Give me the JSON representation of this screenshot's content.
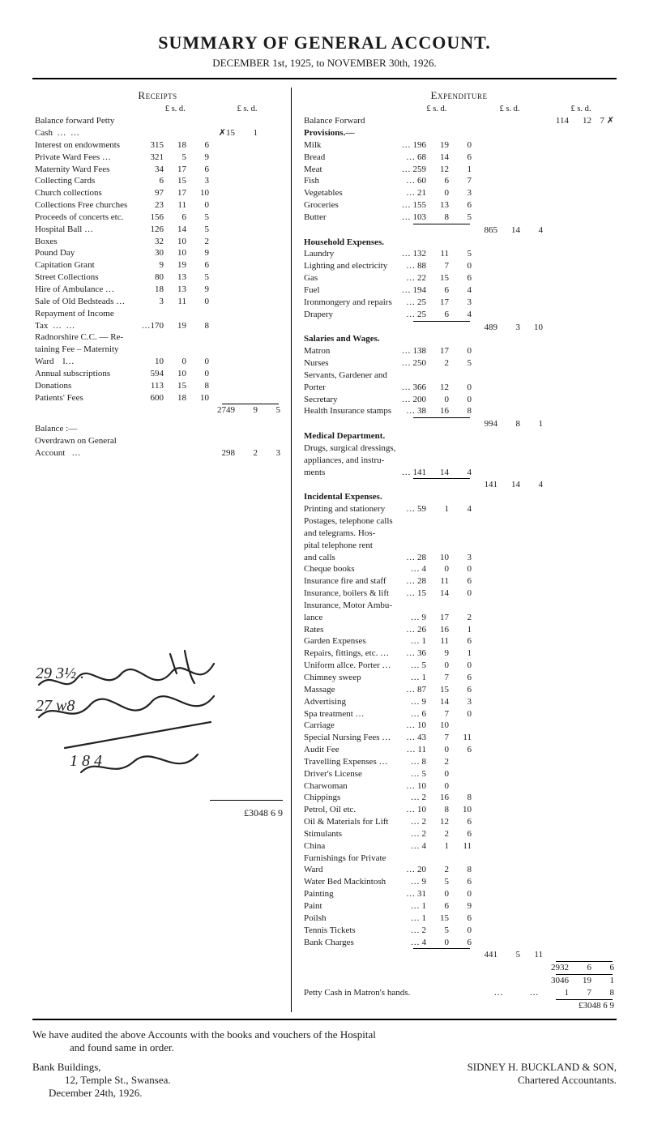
{
  "header": {
    "title": "SUMMARY OF GENERAL ACCOUNT.",
    "subtitle": "DECEMBER 1st, 1925, to NOVEMBER 30th, 1926."
  },
  "colors": {
    "text": "#1a1a1a",
    "rule": "#000000",
    "background": "#ffffff"
  },
  "receipts": {
    "heading": "Receipts",
    "currency_header_inner": "£  s. d.",
    "currency_header_outer": "£  s. d.",
    "balance_forward_label": "Balance forward Petty",
    "balance_forward_sub": "Cash",
    "balance_forward_amt": {
      "L": 15,
      "s": 1,
      "note_symbol": "✗"
    },
    "items": [
      {
        "desc": "Interest on endowments",
        "L": 315,
        "s": 18,
        "d": 6
      },
      {
        "desc": "Private Ward Fees …",
        "L": 321,
        "s": 5,
        "d": 9
      },
      {
        "desc": "Maternity Ward Fees",
        "L": 34,
        "s": 17,
        "d": 6
      },
      {
        "desc": "Collecting Cards",
        "L": 6,
        "s": 15,
        "d": 3
      },
      {
        "desc": "Church collections",
        "L": 97,
        "s": 17,
        "d": 10
      },
      {
        "desc": "Collections Free churches",
        "L": 23,
        "s": 11,
        "d": 0
      },
      {
        "desc": "Proceeds of concerts etc.",
        "L": 156,
        "s": 6,
        "d": 5
      },
      {
        "desc": "Hospital Ball …",
        "L": 126,
        "s": 14,
        "d": 5
      },
      {
        "desc": "Boxes",
        "L": 32,
        "s": 10,
        "d": 2
      },
      {
        "desc": "Pound Day",
        "L": 30,
        "s": 10,
        "d": 9
      },
      {
        "desc": "Capitation Grant",
        "L": 9,
        "s": 19,
        "d": 6
      },
      {
        "desc": "Street Collections",
        "L": 80,
        "s": 13,
        "d": 5
      },
      {
        "desc": "Hire of Ambulance …",
        "L": 18,
        "s": 13,
        "d": 9
      },
      {
        "desc": "Sale of Old Bedsteads …",
        "L": 3,
        "s": 11,
        "d": 0
      },
      {
        "desc": "Repayment of Income",
        "sub": "Tax",
        "L": 170,
        "s": 19,
        "d": 8
      },
      {
        "desc": "Radnorshire C.C. — Re-",
        "sub": "taining Fee – Maternity",
        "sub2": "Ward",
        "L": 10,
        "s": 0,
        "d": 0
      },
      {
        "desc": "Annual subscriptions",
        "L": 594,
        "s": 10,
        "d": 0
      },
      {
        "desc": "Donations",
        "L": 113,
        "s": 15,
        "d": 8
      },
      {
        "desc": "Patients' Fees",
        "L": 600,
        "s": 18,
        "d": 10
      }
    ],
    "subtotal": {
      "L": 2749,
      "s": 9,
      "d": 5
    },
    "balance_section": {
      "label": "Balance :—",
      "sub": "Overdrawn on General",
      "sub2": "Account",
      "amt": {
        "L": 298,
        "s": 2,
        "d": 3
      }
    },
    "grand_total": "£3048  6  9"
  },
  "expenditure": {
    "heading": "Expenditure",
    "currency_col1": "£  s. d.",
    "currency_col2": "£  s. d.",
    "currency_col3": "£  s. d.",
    "balance_forward_row": {
      "desc": "Balance Forward",
      "L": 114,
      "s": 12,
      "d": 7,
      "note_symbol": "✗"
    },
    "sections": {
      "provisions": {
        "title": "Provisions.—",
        "items": [
          {
            "desc": "Milk",
            "L": 196,
            "s": 19,
            "d": 0
          },
          {
            "desc": "Bread",
            "L": 68,
            "s": 14,
            "d": 6
          },
          {
            "desc": "Meat",
            "L": 259,
            "s": 12,
            "d": 1
          },
          {
            "desc": "Fish",
            "L": 60,
            "s": 6,
            "d": 7
          },
          {
            "desc": "Vegetables",
            "L": 21,
            "s": 0,
            "d": 3
          },
          {
            "desc": "Groceries",
            "L": 155,
            "s": 13,
            "d": 6
          },
          {
            "desc": "Butter",
            "L": 103,
            "s": 8,
            "d": 5
          }
        ],
        "subtotal": {
          "L": 865,
          "s": 14,
          "d": 4
        }
      },
      "household": {
        "title": "Household Expenses.",
        "items": [
          {
            "desc": "Laundry",
            "L": 132,
            "s": 11,
            "d": 5
          },
          {
            "desc": "Lighting and electricity",
            "L": 88,
            "s": 7,
            "d": 0
          },
          {
            "desc": "Gas",
            "L": 22,
            "s": 15,
            "d": 6
          },
          {
            "desc": "Fuel",
            "L": 194,
            "s": 6,
            "d": 4
          },
          {
            "desc": "Ironmongery and repairs",
            "L": 25,
            "s": 17,
            "d": 3
          },
          {
            "desc": "Drapery",
            "L": 25,
            "s": 6,
            "d": 4
          }
        ],
        "subtotal": {
          "L": 489,
          "s": 3,
          "d": 10
        }
      },
      "salaries": {
        "title": "Salaries and Wages.",
        "items": [
          {
            "desc": "Matron",
            "L": 138,
            "s": 17,
            "d": 0
          },
          {
            "desc": "Nurses",
            "L": 250,
            "s": 2,
            "d": 5
          },
          {
            "desc": "Servants, Gardener and"
          },
          {
            "desc": "Porter",
            "indent": true,
            "L": 366,
            "s": 12,
            "d": 0
          },
          {
            "desc": "Secretary",
            "L": 200,
            "s": 0,
            "d": 0
          },
          {
            "desc": "Health Insurance stamps",
            "L": 38,
            "s": 16,
            "d": 8
          }
        ],
        "subtotal": {
          "L": 994,
          "s": 8,
          "d": 1
        }
      },
      "medical": {
        "title": "Medical Department.",
        "items": [
          {
            "desc": "Drugs, surgical dressings,"
          },
          {
            "desc": "appliances, and instru-",
            "indent": true
          },
          {
            "desc": "ments",
            "indent": true,
            "L": 141,
            "s": 14,
            "d": 4
          }
        ],
        "subtotal": {
          "L": 141,
          "s": 14,
          "d": 4
        }
      },
      "incidental": {
        "title": "Incidental Expenses.",
        "items": [
          {
            "desc": "Printing and stationery",
            "L": 59,
            "s": 1,
            "d": 4
          },
          {
            "desc": "Postages, telephone calls"
          },
          {
            "desc": "and telegrams.  Hos-",
            "indent": true
          },
          {
            "desc": "pital  telephone  rent",
            "indent": true
          },
          {
            "desc": "and calls",
            "indent": true,
            "L": 28,
            "s": 10,
            "d": 3
          },
          {
            "desc": "Cheque books",
            "L": 4,
            "s": 0,
            "d": 0
          },
          {
            "desc": "Insurance fire and staff",
            "L": 28,
            "s": 11,
            "d": 6
          },
          {
            "desc": "Insurance, boilers & lift",
            "L": 15,
            "s": 14,
            "d": 0
          },
          {
            "desc": "Insurance, Motor Ambu-"
          },
          {
            "desc": "lance",
            "indent": true,
            "L": 9,
            "s": 17,
            "d": 2
          },
          {
            "desc": "Rates",
            "L": 26,
            "s": 16,
            "d": 1
          },
          {
            "desc": "Garden Expenses",
            "L": 1,
            "s": 11,
            "d": 6
          },
          {
            "desc": "Repairs, fittings, etc. …",
            "L": 36,
            "s": 9,
            "d": 1
          },
          {
            "desc": "Uniform allce. Porter …",
            "L": 5,
            "s": 0,
            "d": 0
          },
          {
            "desc": "Chimney sweep",
            "L": 1,
            "s": 7,
            "d": 6
          },
          {
            "desc": "Massage",
            "L": 87,
            "s": 15,
            "d": 6
          },
          {
            "desc": "Advertising",
            "L": 9,
            "s": 14,
            "d": 3
          },
          {
            "desc": "Spa treatment …",
            "L": 6,
            "s": 7,
            "d": 0
          },
          {
            "desc": "Carriage",
            "L": 10,
            "s": 10,
            "d": ""
          },
          {
            "desc": "Special Nursing Fees …",
            "L": 43,
            "s": 7,
            "d": 11
          },
          {
            "desc": "Audit Fee",
            "L": 11,
            "s": 0,
            "d": 6
          },
          {
            "desc": "Travelling Expenses …",
            "L": 8,
            "s": 2,
            "d": ""
          },
          {
            "desc": "Driver's License",
            "L": 5,
            "s": 0,
            "d": ""
          },
          {
            "desc": "Charwoman",
            "L": 10,
            "s": 0,
            "d": ""
          },
          {
            "desc": "Chippings",
            "L": 2,
            "s": 16,
            "d": 8
          },
          {
            "desc": "Petrol, Oil etc.",
            "L": 10,
            "s": 8,
            "d": 10
          },
          {
            "desc": "Oil & Materials for Lift",
            "L": 2,
            "s": 12,
            "d": 6
          },
          {
            "desc": "Stimulants",
            "L": 2,
            "s": 2,
            "d": 6
          },
          {
            "desc": "China",
            "L": 4,
            "s": 1,
            "d": 11
          },
          {
            "desc": "Furnishings for Private"
          },
          {
            "desc": "Ward",
            "indent": true,
            "L": 20,
            "s": 2,
            "d": 8
          },
          {
            "desc": "Water Bed Mackintosh",
            "L": 9,
            "s": 5,
            "d": 6
          },
          {
            "desc": "Painting",
            "L": 31,
            "s": 0,
            "d": 0
          },
          {
            "desc": "Paint",
            "L": 1,
            "s": 6,
            "d": 9
          },
          {
            "desc": "Poilsh",
            "L": 1,
            "s": 15,
            "d": 6
          },
          {
            "desc": "Tennis Tickets",
            "L": 2,
            "s": 5,
            "d": 0
          },
          {
            "desc": "Bank Charges",
            "L": 4,
            "s": 0,
            "d": 6
          }
        ],
        "subtotal": {
          "L": 441,
          "s": 5,
          "d": 11
        }
      }
    },
    "inner_total": {
      "L": 2932,
      "s": 6,
      "d": 6
    },
    "running_total": {
      "L": 3046,
      "s": 19,
      "d": 1
    },
    "petty_cash": {
      "desc": "Petty Cash in Matron's hands.",
      "L": 1,
      "s": 7,
      "d": 8
    },
    "grand_total": "£3048  6  9"
  },
  "footer": {
    "audit": "We have audited the above Accounts with the books and vouchers of the Hospital",
    "audit2": "and found same in order.",
    "left": {
      "l1": "Bank Buildings,",
      "l2": "12, Temple St., Swansea.",
      "l3": "December 24th, 1926."
    },
    "right": {
      "l1": "SIDNEY H. BUCKLAND & SON,",
      "l2": "Chartered Accountants."
    }
  },
  "scribble_text": "29 3½ .\n27 w8\n1 8 4"
}
